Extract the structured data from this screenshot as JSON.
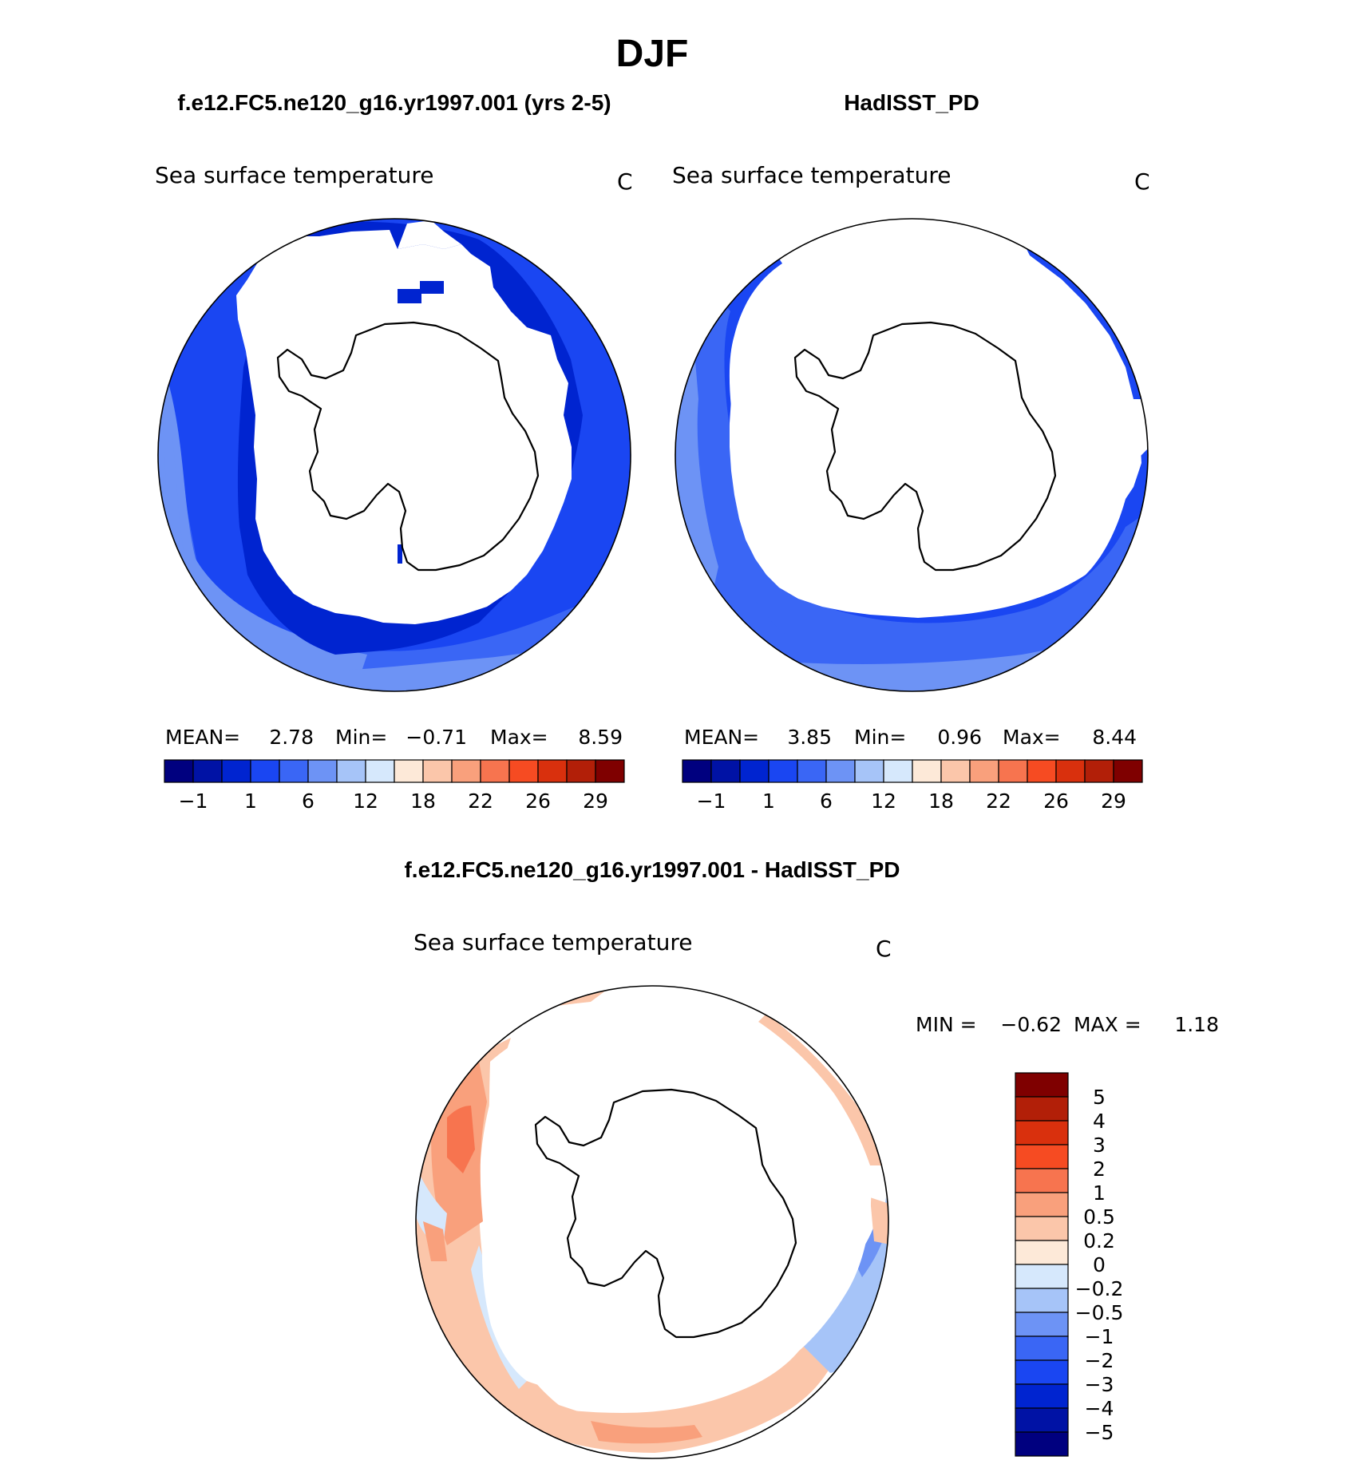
{
  "page": {
    "title": "DJF"
  },
  "panels": [
    {
      "id": "model",
      "case_title": "f.e12.FC5.ne120_g16.yr1997.001 (yrs 2-5)",
      "variable": "Sea surface temperature",
      "units": "C",
      "stats": {
        "mean_label": "MEAN=",
        "mean": "2.78",
        "min_label": "Min=",
        "min": "−0.71",
        "max_label": "Max=",
        "max": "8.59"
      }
    },
    {
      "id": "obs",
      "case_title": "HadISST_PD",
      "variable": "Sea surface temperature",
      "units": "C",
      "stats": {
        "mean_label": "MEAN=",
        "mean": "3.85",
        "min_label": "Min=",
        "min": "0.96",
        "max_label": "Max=",
        "max": "8.44"
      }
    }
  ],
  "absolute_colorbar": {
    "colors": [
      "#00007f",
      "#0012a5",
      "#0024d0",
      "#1a46f2",
      "#3a66f5",
      "#6d93f5",
      "#a6c4f8",
      "#d6e8fc",
      "#fde9d8",
      "#fbc6aa",
      "#f9a07c",
      "#f7744f",
      "#f64b22",
      "#d9300d",
      "#b21f08",
      "#7f0000"
    ],
    "tick_labels": [
      "−1",
      "1",
      "6",
      "12",
      "18",
      "22",
      "26",
      "29"
    ]
  },
  "difference_panel": {
    "case_title": "f.e12.FC5.ne120_g16.yr1997.001 - HadISST_PD",
    "variable": "Sea surface temperature",
    "units": "C",
    "stats": {
      "min_label": "MIN =",
      "min": "−0.62",
      "max_label": "MAX =",
      "max": "1.18"
    }
  },
  "difference_colorbar": {
    "colors_top_to_bottom": [
      "#7f0000",
      "#b21f08",
      "#d9300d",
      "#f64b22",
      "#f7744f",
      "#f9a07c",
      "#fbc6aa",
      "#fde9d8",
      "#d6e8fc",
      "#a6c4f8",
      "#6d93f5",
      "#3a66f5",
      "#1a46f2",
      "#0024d0",
      "#0012a5",
      "#00007f"
    ],
    "tick_labels_top_to_bottom": [
      "5",
      "4",
      "3",
      "2",
      "1",
      "0.5",
      "0.2",
      "0",
      "−0.2",
      "−0.5",
      "−1",
      "−2",
      "−3",
      "−4",
      "−5"
    ]
  }
}
